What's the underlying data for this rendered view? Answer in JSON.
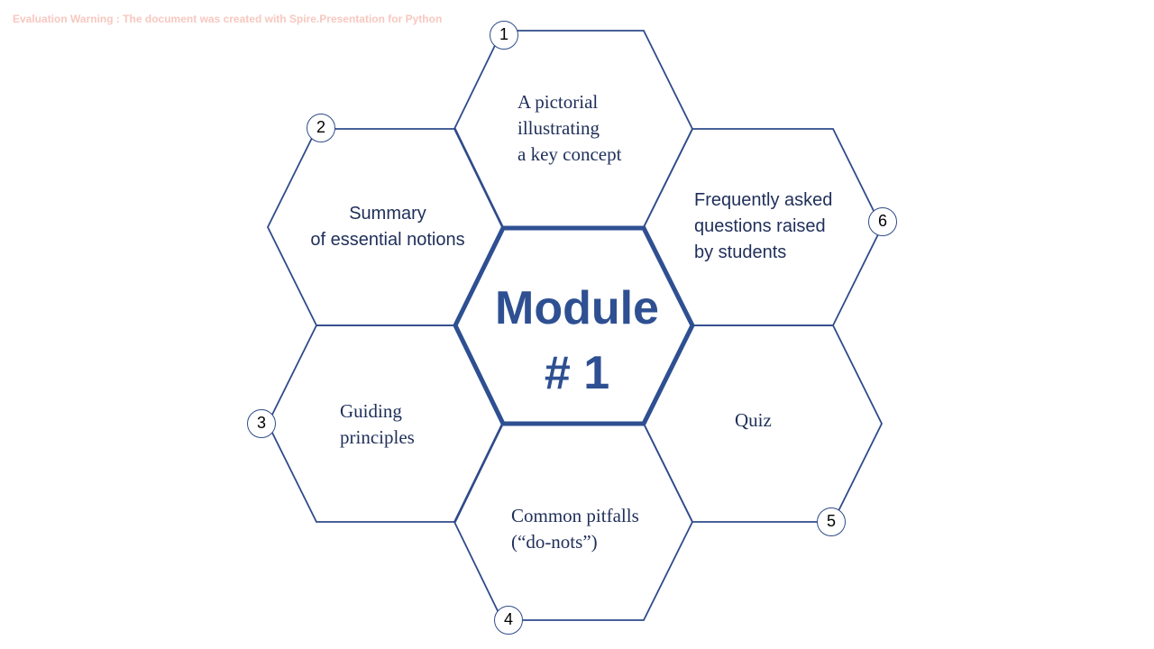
{
  "watermark": "Evaluation Warning : The document was created with Spire.Presentation for Python",
  "colors": {
    "outline": "#2f4b8a",
    "center_outline": "#2e5092",
    "center_text": "#2e5092",
    "text": "#1f2f5a"
  },
  "center": {
    "title": "Module\n# 1"
  },
  "hexes": [
    {
      "number": "1",
      "label": "A pictorial\nillustrating\na key concept"
    },
    {
      "number": "2",
      "label": "Summary\nof essential notions"
    },
    {
      "number": "3",
      "label": "Guiding\nprinciples"
    },
    {
      "number": "4",
      "label": "Common pitfalls\n(“do-nots”)"
    },
    {
      "number": "5",
      "label": "Quiz"
    },
    {
      "number": "6",
      "label": "Frequently asked\nquestions raised\nby students"
    }
  ]
}
